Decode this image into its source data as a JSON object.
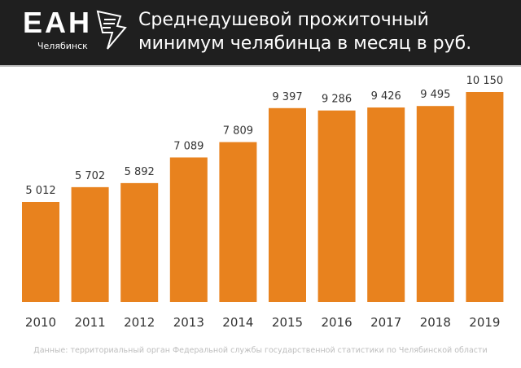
{
  "header": {
    "logo": "ЕАН",
    "logo_sub": "Челябинск",
    "title_line1": "Среднедушевой прожиточный",
    "title_line2": "минимум челябинца в месяц в руб."
  },
  "chart_data": {
    "type": "bar",
    "title": "Среднедушевой прожиточный минимум челябинца в месяц в руб.",
    "categories": [
      "2010",
      "2011",
      "2012",
      "2013",
      "2014",
      "2015",
      "2016",
      "2017",
      "2018",
      "2019"
    ],
    "values": [
      5012,
      5702,
      5892,
      7089,
      7809,
      9397,
      9286,
      9426,
      9495,
      10150
    ],
    "labels": [
      "5 012",
      "5 702",
      "5 892",
      "7 089",
      "7 809",
      "9 397",
      "9 286",
      "9 426",
      "9 495",
      "10 150"
    ],
    "xlabel": "",
    "ylabel": "",
    "ylim": [
      331,
      10150
    ],
    "grid": false,
    "color": "#E8821E"
  },
  "footer": "Данные: территориальный орган Федеральной службы государственной статистики по Челябинской области"
}
